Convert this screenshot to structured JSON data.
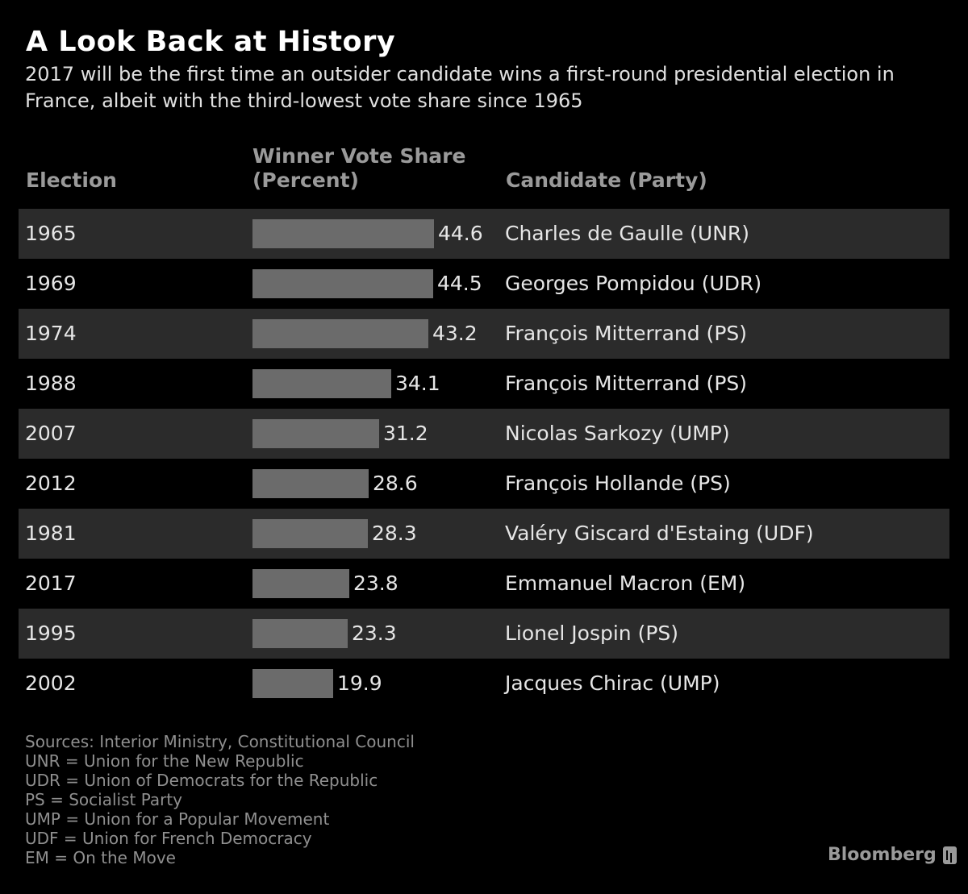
{
  "title": "A Look Back at History",
  "subtitle": "2017 will be the first time an outsider candidate wins a first-round presidential election in France, albeit with the third-lowest vote share since 1965",
  "columns": {
    "election": "Election",
    "share": "Winner Vote Share (Percent)",
    "candidate": "Candidate (Party)"
  },
  "chart_data": {
    "type": "bar",
    "orientation": "horizontal",
    "categories": [
      "1965",
      "1969",
      "1974",
      "1988",
      "2007",
      "2012",
      "1981",
      "2017",
      "1995",
      "2002"
    ],
    "values": [
      44.6,
      44.5,
      43.2,
      34.1,
      31.2,
      28.6,
      28.3,
      23.8,
      23.3,
      19.9
    ],
    "value_labels": [
      "44.6",
      "44.5",
      "43.2",
      "34.1",
      "31.2",
      "28.6",
      "28.3",
      "23.8",
      "23.3",
      "19.9"
    ],
    "candidates": [
      "Charles de Gaulle (UNR)",
      "Georges Pompidou (UDR)",
      "François Mitterrand (PS)",
      "François Mitterrand (PS)",
      "Nicolas Sarkozy (UMP)",
      "François Hollande (PS)",
      "Valéry Giscard d'Estaing (UDF)",
      "Emmanuel Macron (EM)",
      "Lionel Jospin (PS)",
      "Jacques Chirac (UMP)"
    ],
    "xlim": [
      0,
      44.6
    ],
    "bar_color": "#6b6b6b",
    "row_shade_color": "#2b2b2b"
  },
  "notes": [
    "Sources: Interior Ministry, Constitutional Council",
    "UNR = Union for the New Republic",
    "UDR = Union of Democrats for the Republic",
    "PS = Socialist Party",
    "UMP = Union for a Popular Movement",
    "UDF = Union for French Democracy",
    "EM = On the Move"
  ],
  "brand": "Bloomberg"
}
